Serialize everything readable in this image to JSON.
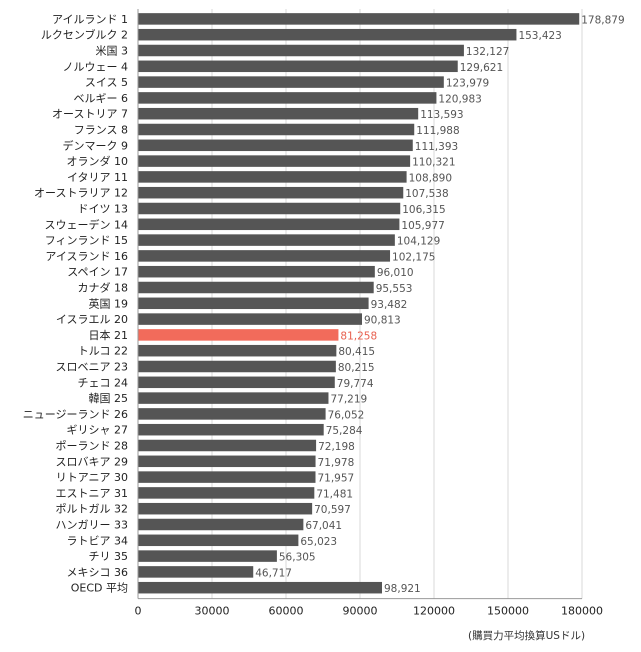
{
  "chart_data": {
    "type": "bar",
    "orientation": "horizontal",
    "categories": [
      "アイルランド 1",
      "ルクセンブルク 2",
      "米国 3",
      "ノルウェー 4",
      "スイス 5",
      "ベルギー 6",
      "オーストリア 7",
      "フランス 8",
      "デンマーク 9",
      "オランダ 10",
      "イタリア 11",
      "オーストラリア 12",
      "ドイツ 13",
      "スウェーデン 14",
      "フィンランド 15",
      "アイスランド 16",
      "スペイン 17",
      "カナダ 18",
      "英国 19",
      "イスラエル 20",
      "日本 21",
      "トルコ 22",
      "スロベニア 23",
      "チェコ 24",
      "韓国 25",
      "ニュージーランド 26",
      "ギリシャ 27",
      "ポーランド 28",
      "スロバキア 29",
      "リトアニア 30",
      "エストニア 31",
      "ポルトガル 32",
      "ハンガリー 33",
      "ラトビア 34",
      "チリ 35",
      "メキシコ 36",
      "OECD 平均"
    ],
    "values": [
      178879,
      153423,
      132127,
      129621,
      123979,
      120983,
      113593,
      111988,
      111393,
      110321,
      108890,
      107538,
      106315,
      105977,
      104129,
      102175,
      96010,
      95553,
      93482,
      90813,
      81258,
      80415,
      80215,
      79774,
      77219,
      76052,
      75284,
      72198,
      71978,
      71957,
      71481,
      70597,
      67041,
      65023,
      56305,
      46717,
      98921
    ],
    "value_labels": [
      "178,879",
      "153,423",
      "132,127",
      "129,621",
      "123,979",
      "120,983",
      "113,593",
      "111,988",
      "111,393",
      "110,321",
      "108,890",
      "107,538",
      "106,315",
      "105,977",
      "104,129",
      "102,175",
      "96,010",
      "95,553",
      "93,482",
      "90,813",
      "81,258",
      "80,415",
      "80,215",
      "79,774",
      "77,219",
      "76,052",
      "75,284",
      "72,198",
      "71,978",
      "71,957",
      "71,481",
      "70,597",
      "67,041",
      "65,023",
      "56,305",
      "46,717",
      "98,921"
    ],
    "highlight_category": "日本 21",
    "xlim": [
      0,
      180000
    ],
    "xticks": [
      0,
      30000,
      60000,
      90000,
      120000,
      150000,
      180000
    ],
    "xtick_labels": [
      "0",
      "30000",
      "60000",
      "90000",
      "120000",
      "150000",
      "180000"
    ],
    "unit_label": "(購買力平均換算USドル)",
    "grid": "vertical",
    "legend": false
  },
  "colors": {
    "bar": "#555555",
    "highlight_bar": "#f26b5b",
    "highlight_text": "#e8604f",
    "grid": "#d9d9d9",
    "axis": "#999999"
  }
}
